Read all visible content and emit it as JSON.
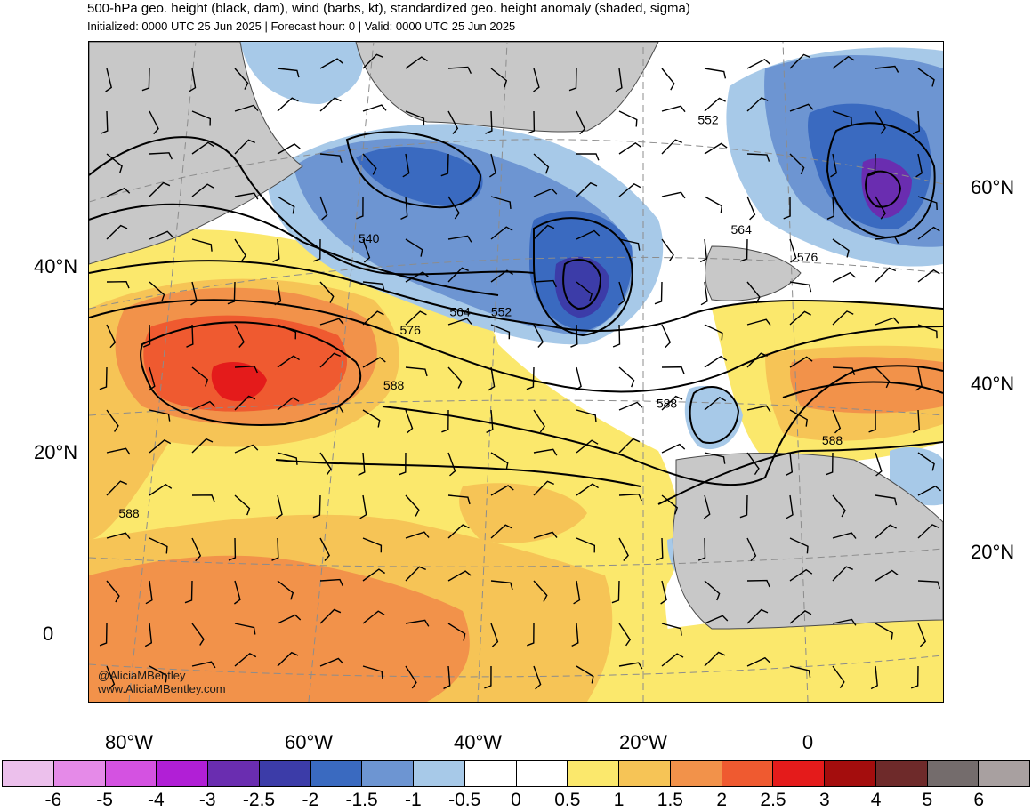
{
  "header": {
    "title": "500-hPa geo. height (black, dam), wind (barbs, kt), standardized geo. height anomaly (shaded, sigma)",
    "subtitle": "Initialized: 0000 UTC 25 Jun 2025 | Forecast hour: 0 | Valid: 0000 UTC 25 Jun 2025"
  },
  "map": {
    "region": "North Atlantic",
    "land_color": "#c8c8c8",
    "coast_color": "#4a4a4a",
    "contour_color": "#000000",
    "contour_labels": [
      {
        "text": "540",
        "lon": -51,
        "lat": 46
      },
      {
        "text": "552",
        "lon": -10,
        "lat": 59
      },
      {
        "text": "552",
        "lon": -35,
        "lat": 38
      },
      {
        "text": "564",
        "lon": -40,
        "lat": 38
      },
      {
        "text": "564",
        "lon": -6,
        "lat": 47
      },
      {
        "text": "576",
        "lon": -46,
        "lat": 36
      },
      {
        "text": "576",
        "lon": 2,
        "lat": 44
      },
      {
        "text": "588",
        "lon": -48,
        "lat": 30
      },
      {
        "text": "588",
        "lon": -15,
        "lat": 28
      },
      {
        "text": "588",
        "lon": 5,
        "lat": 24
      },
      {
        "text": "588",
        "lon": -80,
        "lat": 16
      }
    ],
    "lat_labels_left": [
      "40°N",
      "20°N",
      "0"
    ],
    "lat_labels_right": [
      "60°N",
      "40°N",
      "20°N"
    ],
    "lon_labels": [
      "80°W",
      "60°W",
      "40°W",
      "20°W",
      "0"
    ]
  },
  "credits": {
    "handle": "@AliciaMBentley",
    "website": "www.AliciaMBentley.com"
  },
  "colorbar": {
    "colors": [
      "#ecc0ec",
      "#e58ae8",
      "#d452e1",
      "#b11fd6",
      "#6a2db0",
      "#3c3ca8",
      "#3a6ac0",
      "#6d95d2",
      "#a7c9e8",
      "#ffffff",
      "#ffffff",
      "#fbe86c",
      "#f6c456",
      "#f2924a",
      "#ef5a30",
      "#e41b1b",
      "#a40d0d",
      "#6e2a2a",
      "#746c6c",
      "#a8a0a0"
    ],
    "ticks": [
      "-6",
      "-5",
      "-4",
      "-3",
      "-2.5",
      "-2",
      "-1.5",
      "-1",
      "-0.5",
      "0",
      "0.5",
      "1",
      "1.5",
      "2",
      "2.5",
      "3",
      "4",
      "5",
      "6"
    ]
  }
}
